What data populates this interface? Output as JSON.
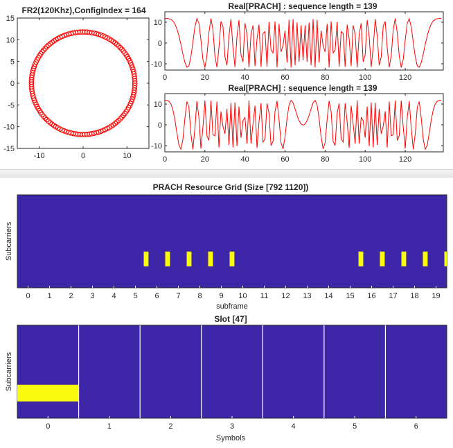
{
  "colors": {
    "marker": "#ff0000",
    "line": "#ff0000",
    "grid_bg": "#3d26a8",
    "grid_fg": "#f9fb0e",
    "axis": "#262626"
  },
  "chart_data": [
    {
      "type": "scatter",
      "title": "FR2(120Khz),ConfigIndex = 164",
      "xlim": [
        -15,
        15
      ],
      "ylim": [
        -15,
        15
      ],
      "xticks": [
        "-10",
        "0",
        "10"
      ],
      "yticks": [
        "15",
        "10",
        "5",
        "0",
        "-5",
        "-10",
        "-15"
      ],
      "marker": "circle",
      "radius": 11.79,
      "num_points": 139,
      "note_points": "points lie on a circle of radius about 11.8"
    },
    {
      "type": "line",
      "title": "Real[PRACH] : sequence length = 139",
      "xlim": [
        0,
        139
      ],
      "ylim": [
        -13,
        15
      ],
      "xticks": [
        "0",
        "20",
        "40",
        "60",
        "80",
        "100",
        "120"
      ],
      "yticks": [
        "10",
        "0",
        "-10"
      ],
      "length": 139,
      "amplitude": 11.79,
      "root": 1
    },
    {
      "type": "line",
      "title": "Real[PRACH] : sequence length = 139",
      "xlim": [
        0,
        139
      ],
      "ylim": [
        -13,
        15
      ],
      "xticks": [
        "0",
        "20",
        "40",
        "60",
        "80",
        "100",
        "120"
      ],
      "yticks": [
        "10",
        "0",
        "-10"
      ],
      "length": 139,
      "amplitude": 11.79,
      "root": 2
    },
    {
      "type": "heatmap",
      "title": "PRACH Resource Grid (Size [792 1120])",
      "xlabel": "subframe",
      "ylabel": "Subcarriers",
      "xlim": [
        -0.5,
        19.5
      ],
      "xticks": [
        "0",
        "1",
        "2",
        "3",
        "4",
        "5",
        "6",
        "7",
        "8",
        "9",
        "10",
        "11",
        "12",
        "13",
        "14",
        "15",
        "16",
        "17",
        "18",
        "19"
      ],
      "active_subframes": [
        5.5,
        6.5,
        7.5,
        8.5,
        9.5,
        15.5,
        16.5,
        17.5,
        18.5,
        19.5
      ],
      "active_width_subframes": 0.22,
      "active_rows_fraction": [
        0.61,
        0.77
      ]
    },
    {
      "type": "heatmap",
      "title": "Slot [47]",
      "xlabel": "Symbols",
      "ylabel": "Subcarriers",
      "xlim": [
        -0.5,
        6.5
      ],
      "xticks": [
        "0",
        "1",
        "2",
        "3",
        "4",
        "5",
        "6"
      ],
      "active_symbols": [
        0
      ],
      "active_rows_fraction": [
        0.64,
        0.82
      ],
      "symbol_dividers": [
        0.5,
        1.5,
        2.5,
        3.5,
        4.5,
        5.5
      ]
    }
  ]
}
